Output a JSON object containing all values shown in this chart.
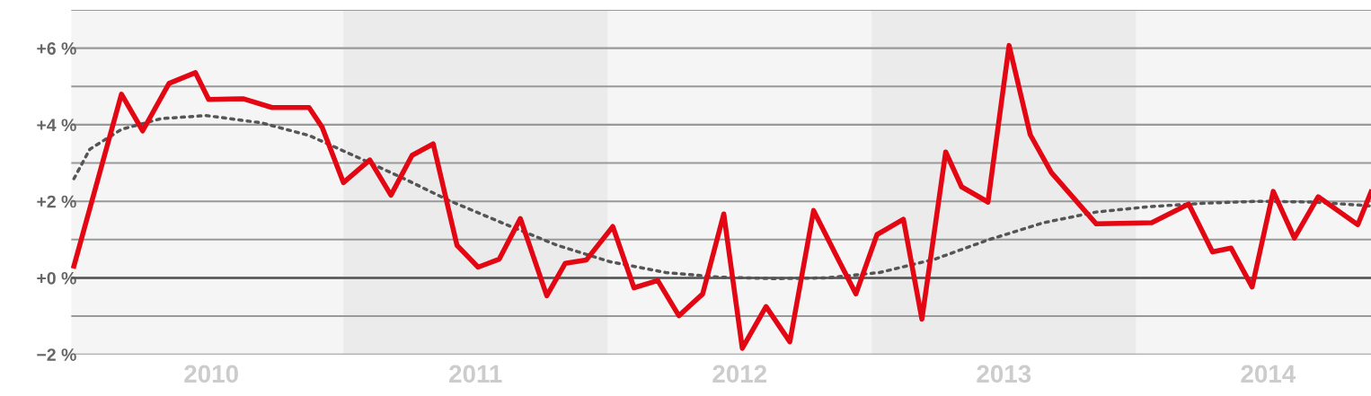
{
  "chart_data": {
    "type": "line",
    "xlim": [
      2009.97,
      2014.89
    ],
    "ylim": [
      -2,
      7
    ],
    "xticks": [
      {
        "value": 2010.5,
        "label": "2010"
      },
      {
        "value": 2011.5,
        "label": "2011"
      },
      {
        "value": 2012.5,
        "label": "2012"
      },
      {
        "value": 2013.5,
        "label": "2013"
      },
      {
        "value": 2014.5,
        "label": "2014"
      }
    ],
    "yticks": [
      {
        "value": -2,
        "label": "−2 %"
      },
      {
        "value": -1,
        "label": null
      },
      {
        "value": 0,
        "label": "+0 %"
      },
      {
        "value": 1,
        "label": null
      },
      {
        "value": 2,
        "label": "+2 %"
      },
      {
        "value": 3,
        "label": null
      },
      {
        "value": 4,
        "label": "+4 %"
      },
      {
        "value": 5,
        "label": null
      },
      {
        "value": 6,
        "label": "+6 %"
      },
      {
        "value": 7,
        "label": null
      }
    ],
    "grid": "y",
    "marker": "none",
    "bands": [
      {
        "axis": "x",
        "from": 2011,
        "to": 2012,
        "color": "#ebebeb"
      },
      {
        "axis": "x",
        "from": 2013,
        "to": 2014,
        "color": "#ebebeb"
      }
    ],
    "ref_lines": [
      {
        "axis": "y",
        "value": 0,
        "color": "#555555"
      }
    ],
    "series": [
      {
        "color": "#e30613",
        "line_style": "solid",
        "x": [
          2009.98,
          2010.16,
          2010.24,
          2010.34,
          2010.44,
          2010.49,
          2010.62,
          2010.73,
          2010.87,
          2010.92,
          2011.0,
          2011.1,
          2011.18,
          2011.26,
          2011.34,
          2011.43,
          2011.51,
          2011.59,
          2011.67,
          2011.77,
          2011.84,
          2011.92,
          2012.02,
          2012.1,
          2012.19,
          2012.27,
          2012.36,
          2012.44,
          2012.51,
          2012.6,
          2012.69,
          2012.78,
          2012.86,
          2012.94,
          2013.02,
          2013.12,
          2013.19,
          2013.28,
          2013.34,
          2013.44,
          2013.52,
          2013.6,
          2013.68,
          2013.85,
          2014.06,
          2014.2,
          2014.29,
          2014.36,
          2014.44,
          2014.52,
          2014.6,
          2014.69,
          2014.84,
          2014.89
        ],
        "values": [
          0.31,
          4.8,
          3.84,
          5.08,
          5.36,
          4.66,
          4.68,
          4.45,
          4.45,
          3.93,
          2.49,
          3.08,
          2.16,
          3.2,
          3.5,
          0.85,
          0.28,
          0.49,
          1.55,
          -0.47,
          0.38,
          0.47,
          1.34,
          -0.26,
          -0.07,
          -0.99,
          -0.42,
          1.67,
          -1.84,
          -0.75,
          -1.67,
          1.76,
          0.66,
          -0.42,
          1.13,
          1.53,
          -1.08,
          3.29,
          2.38,
          1.98,
          6.07,
          3.74,
          2.75,
          1.41,
          1.44,
          1.93,
          0.68,
          0.78,
          -0.24,
          2.26,
          1.04,
          2.12,
          1.39,
          2.24
        ]
      },
      {
        "color": "#555555",
        "line_style": "dotted",
        "x": [
          2009.98,
          2010.04,
          2010.16,
          2010.31,
          2010.48,
          2010.69,
          2010.87,
          2011.06,
          2011.23,
          2011.4,
          2011.61,
          2011.81,
          2012.01,
          2012.22,
          2012.42,
          2012.63,
          2012.83,
          2013.03,
          2013.24,
          2013.44,
          2013.65,
          2013.85,
          2014.05,
          2014.26,
          2014.46,
          2014.67,
          2014.89
        ],
        "values": [
          2.59,
          3.36,
          3.88,
          4.16,
          4.24,
          4.05,
          3.72,
          3.13,
          2.59,
          2.02,
          1.41,
          0.85,
          0.42,
          0.14,
          0.02,
          -0.02,
          0,
          0.14,
          0.49,
          0.99,
          1.44,
          1.72,
          1.86,
          1.95,
          2.0,
          1.98,
          1.88
        ]
      }
    ]
  }
}
